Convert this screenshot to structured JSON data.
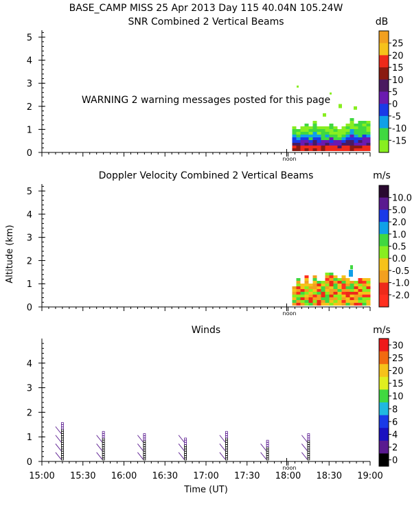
{
  "header": {
    "title_line1": "BASE_CAMP MISS  25 Apr 2013 Day 115 40.04N 105.24W",
    "warning": "WARNING  2 warning messages posted for this page"
  },
  "xaxis": {
    "label": "Time (UT)",
    "ticks": [
      "15:00",
      "15:30",
      "16:00",
      "16:30",
      "17:00",
      "17:30",
      "18:00",
      "18:30",
      "19:00"
    ],
    "noon_label": "noon"
  },
  "ylabel_shared": "Altitude (km)",
  "chart_data": [
    {
      "type": "heatmap",
      "title": "SNR Combined 2 Vertical Beams",
      "unit": "dB",
      "xrange": [
        "15:00",
        "19:00"
      ],
      "ylim": [
        0,
        5.3
      ],
      "yticks": [
        0,
        1,
        2,
        3,
        4,
        5
      ],
      "colorbar": {
        "labels": [
          "25",
          "20",
          "15",
          "10",
          "5",
          "0",
          "-5",
          "-10",
          "-15"
        ],
        "colors": [
          "#f2a020",
          "#f6c21a",
          "#ee2a1a",
          "#8a1a10",
          "#4a1a60",
          "#6a1ab0",
          "#1a3ae8",
          "#10a0e8",
          "#40d840",
          "#88ee20"
        ]
      },
      "data_extent": {
        "time_start": "18:00",
        "time_end": "19:00",
        "alt_max_km": 1.5
      }
    },
    {
      "type": "heatmap",
      "title": "Doppler Velocity Combined 2 Vertical Beams",
      "unit": "m/s",
      "xrange": [
        "15:00",
        "19:00"
      ],
      "ylim": [
        0,
        5.3
      ],
      "yticks": [
        0,
        1,
        2,
        3,
        4,
        5
      ],
      "colorbar": {
        "labels": [
          "10.0",
          "5.0",
          "2.0",
          "1.0",
          "0.5",
          "0.0",
          "-0.5",
          "-1.0",
          "-2.0"
        ],
        "colors": [
          "#2a0a30",
          "#5a1a90",
          "#1a3ae8",
          "#10a0e8",
          "#40d840",
          "#88ee20",
          "#f6c21a",
          "#f2a020",
          "#ee2a1a",
          "#ff3020"
        ]
      },
      "data_extent": {
        "time_start": "18:00",
        "time_end": "19:00",
        "alt_max_km": 1.8
      }
    },
    {
      "type": "scatter",
      "title": "Winds",
      "unit": "m/s",
      "xrange": [
        "15:00",
        "19:00"
      ],
      "ylim": [
        0,
        5.0
      ],
      "yticks": [
        0,
        1,
        2,
        3,
        4
      ],
      "colorbar": {
        "labels": [
          "30",
          "25",
          "20",
          "15",
          "10",
          "8",
          "6",
          "4",
          "2",
          "0"
        ],
        "colors": [
          "#ee1a1a",
          "#f26a10",
          "#f6c21a",
          "#e0ee20",
          "#40d840",
          "#20b8e0",
          "#1a3ae8",
          "#1a10c0",
          "#5a1a90",
          "#000000"
        ]
      },
      "profiles": [
        {
          "time": "15:15",
          "top_km": 1.55
        },
        {
          "time": "15:45",
          "top_km": 1.2
        },
        {
          "time": "16:15",
          "top_km": 1.15
        },
        {
          "time": "16:45",
          "top_km": 0.95
        },
        {
          "time": "17:15",
          "top_km": 1.2
        },
        {
          "time": "17:45",
          "top_km": 0.85
        },
        {
          "time": "18:15",
          "top_km": 1.1
        }
      ]
    }
  ]
}
